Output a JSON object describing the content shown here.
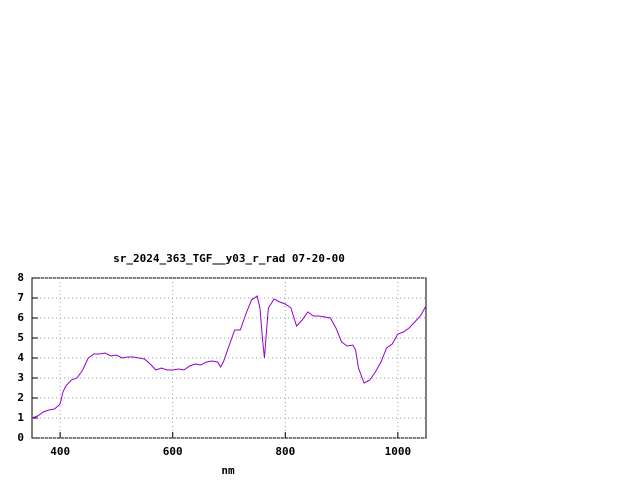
{
  "chart_data": {
    "type": "line",
    "title": "sr_2024_363_TGF__y03_r_rad 07-20-00",
    "x_label": "nm",
    "x": [
      350,
      360,
      370,
      380,
      390,
      400,
      405,
      410,
      420,
      430,
      440,
      450,
      460,
      470,
      480,
      490,
      500,
      510,
      520,
      530,
      540,
      550,
      560,
      570,
      580,
      590,
      600,
      610,
      620,
      630,
      640,
      650,
      660,
      670,
      680,
      685,
      690,
      700,
      710,
      720,
      730,
      740,
      750,
      755,
      760,
      763,
      767,
      770,
      780,
      790,
      800,
      810,
      820,
      830,
      840,
      850,
      860,
      870,
      880,
      890,
      900,
      910,
      920,
      925,
      930,
      940,
      950,
      960,
      970,
      980,
      990,
      1000,
      1010,
      1020,
      1030,
      1040,
      1050
    ],
    "series": [
      {
        "color": "#9400d3",
        "values": [
          1.0,
          1.1,
          1.3,
          1.4,
          1.45,
          1.7,
          2.3,
          2.6,
          2.9,
          3.0,
          3.4,
          4.0,
          4.2,
          4.2,
          4.25,
          4.1,
          4.15,
          4.0,
          4.05,
          4.05,
          4.0,
          3.95,
          3.7,
          3.4,
          3.5,
          3.4,
          3.4,
          3.45,
          3.4,
          3.6,
          3.7,
          3.65,
          3.8,
          3.85,
          3.8,
          3.55,
          3.8,
          4.6,
          5.4,
          5.4,
          6.2,
          6.9,
          7.1,
          6.5,
          4.8,
          4.0,
          5.5,
          6.5,
          6.95,
          6.8,
          6.7,
          6.5,
          5.6,
          5.9,
          6.3,
          6.1,
          6.1,
          6.05,
          6.0,
          5.5,
          4.8,
          4.6,
          4.65,
          4.4,
          3.5,
          2.75,
          2.9,
          3.3,
          3.8,
          4.5,
          4.7,
          5.2,
          5.3,
          5.5,
          5.8,
          6.1,
          6.6
        ]
      }
    ],
    "xlim": [
      350,
      1050
    ],
    "xticks": [
      400,
      600,
      800,
      1000
    ],
    "ylim": [
      0,
      8
    ],
    "yticks": [
      0,
      1,
      2,
      3,
      4,
      5,
      6,
      7,
      8
    ],
    "grid": true
  }
}
